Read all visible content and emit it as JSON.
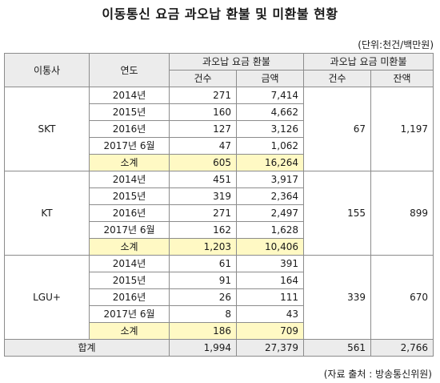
{
  "title": "이동통신 요금 과오납 환불 및 미환불 현황",
  "unit_note": "(단위:천건/백만원)",
  "source_note": "(자료 출처 : 방송통신위원)",
  "headers": {
    "carrier": "이통사",
    "year": "연도",
    "refund_group": "과오납 요금 환불",
    "unrefund_group": "과오납 요금 미환불",
    "count": "건수",
    "amount": "금액",
    "ucount": "건수",
    "balance": "잔액"
  },
  "carriers": [
    {
      "name": "SKT",
      "rows": [
        {
          "year": "2014년",
          "count": "271",
          "amount": "7,414"
        },
        {
          "year": "2015년",
          "count": "160",
          "amount": "4,662"
        },
        {
          "year": "2016년",
          "count": "127",
          "amount": "3,126"
        },
        {
          "year": "2017년 6월",
          "count": "47",
          "amount": "1,062"
        }
      ],
      "subtotal": {
        "label": "소계",
        "count": "605",
        "amount": "16,264"
      },
      "unrefund": {
        "count": "67",
        "balance": "1,197"
      }
    },
    {
      "name": "KT",
      "rows": [
        {
          "year": "2014년",
          "count": "451",
          "amount": "3,917"
        },
        {
          "year": "2015년",
          "count": "319",
          "amount": "2,364"
        },
        {
          "year": "2016년",
          "count": "271",
          "amount": "2,497"
        },
        {
          "year": "2017년 6월",
          "count": "162",
          "amount": "1,628"
        }
      ],
      "subtotal": {
        "label": "소계",
        "count": "1,203",
        "amount": "10,406"
      },
      "unrefund": {
        "count": "155",
        "balance": "899"
      }
    },
    {
      "name": "LGU+",
      "rows": [
        {
          "year": "2014년",
          "count": "61",
          "amount": "391"
        },
        {
          "year": "2015년",
          "count": "91",
          "amount": "164"
        },
        {
          "year": "2016년",
          "count": "26",
          "amount": "111"
        },
        {
          "year": "2017년 6월",
          "count": "8",
          "amount": "43"
        }
      ],
      "subtotal": {
        "label": "소계",
        "count": "186",
        "amount": "709"
      },
      "unrefund": {
        "count": "339",
        "balance": "670"
      }
    }
  ],
  "total": {
    "label": "합계",
    "count": "1,994",
    "amount": "27,379",
    "ucount": "561",
    "balance": "2,766"
  },
  "colors": {
    "header_bg": "#ececec",
    "subtotal_bg": "#fff9c4",
    "border": "#8c8c8c"
  }
}
